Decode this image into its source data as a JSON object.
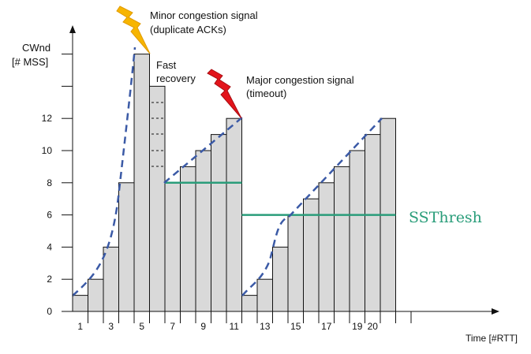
{
  "y_axis": {
    "label_line1": "CWnd",
    "label_line2": "[# MSS]",
    "ticks": [
      "0",
      "2",
      "4",
      "6",
      "8",
      "10",
      "12"
    ]
  },
  "x_axis": {
    "label": "Time [#RTT]",
    "ticks": [
      "1",
      "3",
      "5",
      "7",
      "9",
      "11",
      "13",
      "15",
      "17",
      "19",
      "20"
    ]
  },
  "cwnd_per_rtt": [
    {
      "rtt": 1,
      "cwnd": 1
    },
    {
      "rtt": 2,
      "cwnd": 2
    },
    {
      "rtt": 3,
      "cwnd": 4
    },
    {
      "rtt": 4,
      "cwnd": 8
    },
    {
      "rtt": 5,
      "cwnd": 16
    },
    {
      "rtt": 6,
      "cwnd": 14
    },
    {
      "rtt": 7,
      "cwnd": 8
    },
    {
      "rtt": 8,
      "cwnd": 9
    },
    {
      "rtt": 9,
      "cwnd": 10
    },
    {
      "rtt": 10,
      "cwnd": 11
    },
    {
      "rtt": 11,
      "cwnd": 12
    },
    {
      "rtt": 12,
      "cwnd": 1
    },
    {
      "rtt": 13,
      "cwnd": 2
    },
    {
      "rtt": 14,
      "cwnd": 4
    },
    {
      "rtt": 15,
      "cwnd": 6
    },
    {
      "rtt": 16,
      "cwnd": 7
    },
    {
      "rtt": 17,
      "cwnd": 8
    },
    {
      "rtt": 18,
      "cwnd": 9
    },
    {
      "rtt": 19,
      "cwnd": 10
    },
    {
      "rtt": 20,
      "cwnd": 11
    },
    {
      "rtt": 21,
      "cwnd": 12
    }
  ],
  "ssthresh": {
    "label": "SSThresh",
    "color": "#2a9d7a",
    "segments": [
      {
        "from_rtt": 7,
        "to_rtt": 11,
        "value": 8
      },
      {
        "from_rtt": 12,
        "to_rtt": 21,
        "value": 6
      }
    ]
  },
  "annotations": {
    "minor_line1": "Minor congestion signal",
    "minor_line2": "(duplicate ACKs)",
    "fast_line1": "Fast",
    "fast_line2": "recovery",
    "major_line1": "Major congestion signal",
    "major_line2": "(timeout)"
  },
  "icons": {
    "minor": "lightning-bolt-yellow-icon",
    "major": "lightning-bolt-red-icon"
  },
  "colors": {
    "bar_fill": "#d9d9d9",
    "bar_stroke": "#111111",
    "curve": "#3b5aa6",
    "minor_bolt": "#f7b500",
    "major_bolt": "#e3141b"
  }
}
